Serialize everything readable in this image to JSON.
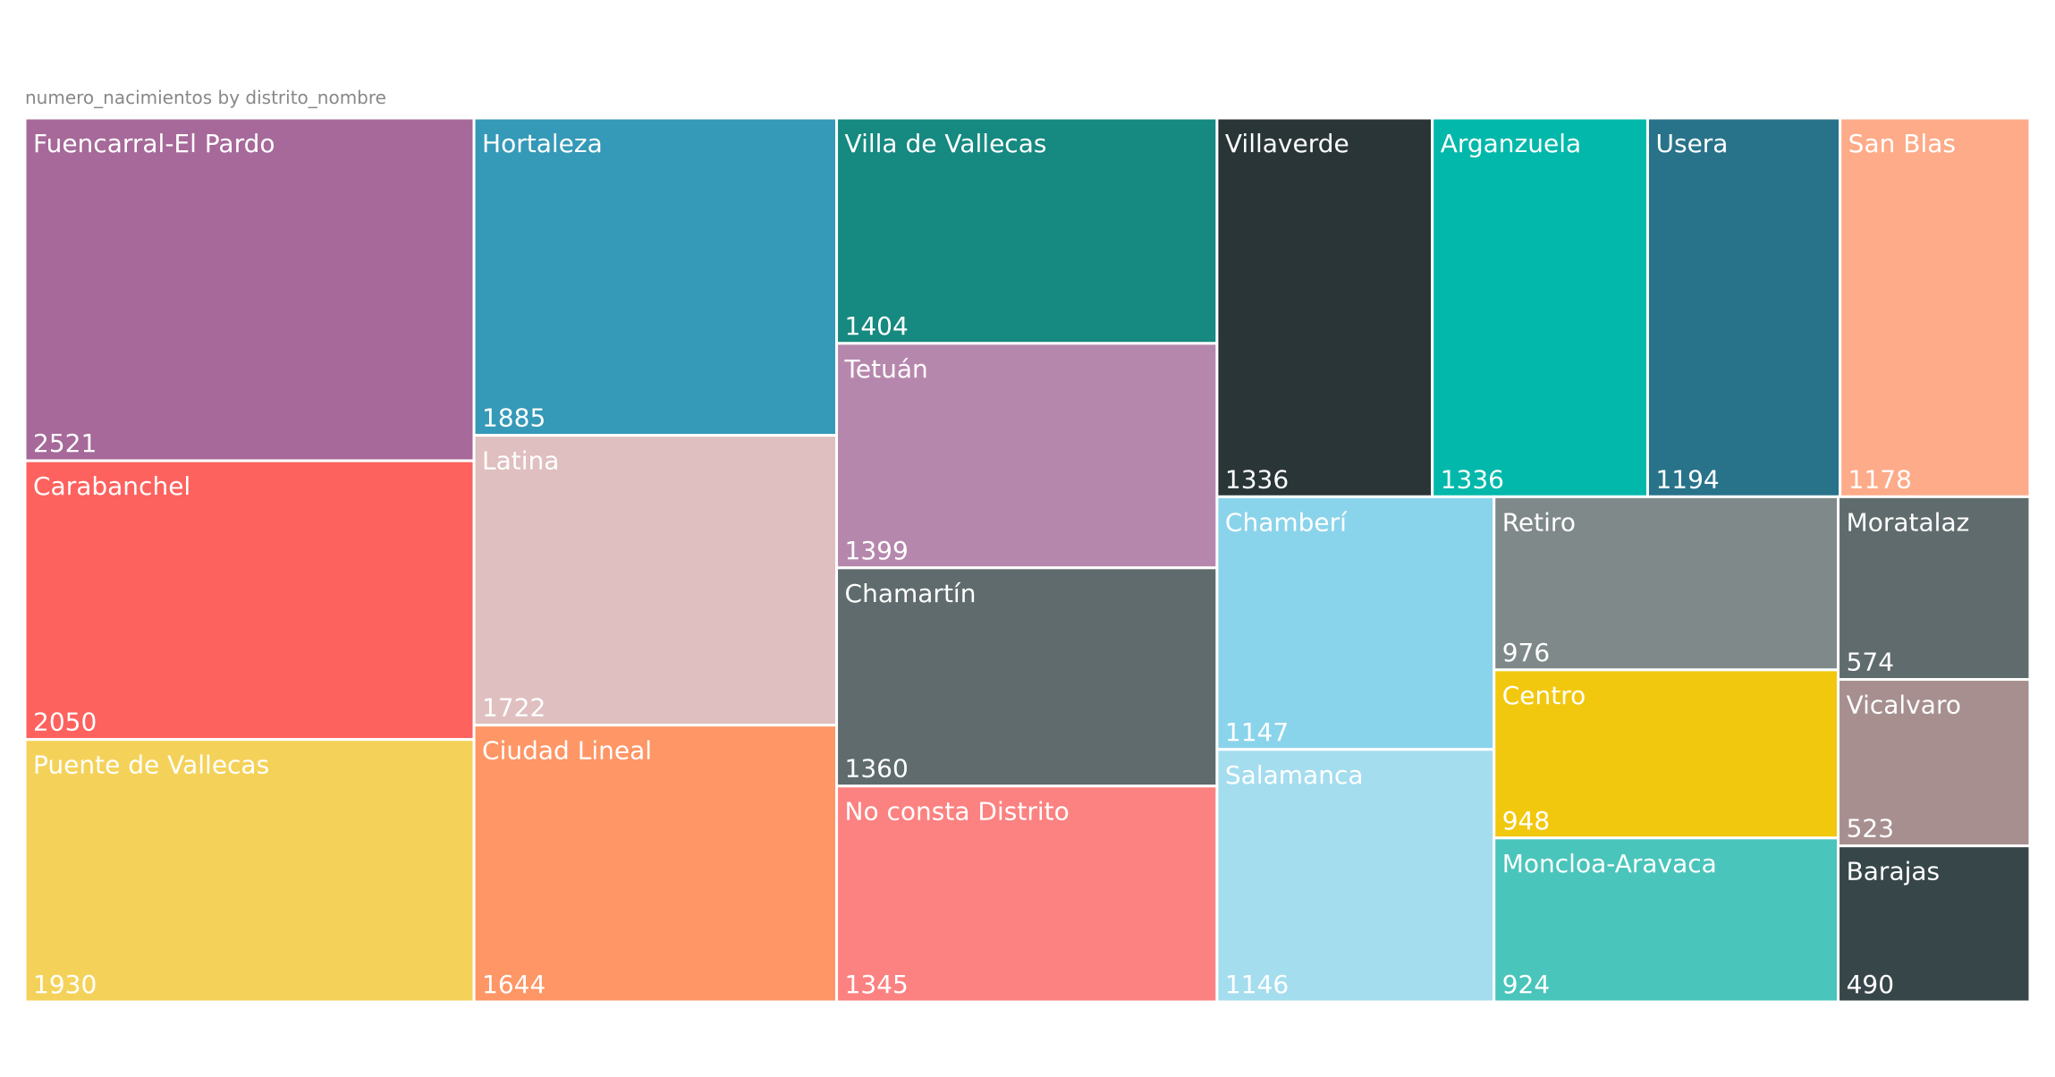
{
  "chart_data": {
    "type": "treemap",
    "title": "numero_nacimientos by distrito_nombre",
    "categories": [
      "Fuencarral-El Pardo",
      "Carabanchel",
      "Puente de Vallecas",
      "Hortaleza",
      "Latina",
      "Ciudad Lineal",
      "Villa de Vallecas",
      "Tetuán",
      "Chamartín",
      "No consta Distrito",
      "Villaverde",
      "Arganzuela",
      "Usera",
      "San Blas",
      "Chamberí",
      "Salamanca",
      "Retiro",
      "Centro",
      "Moncloa-Aravaca",
      "Moratalaz",
      "Vicalvaro",
      "Barajas"
    ],
    "values": [
      2521,
      2050,
      1930,
      1885,
      1722,
      1644,
      1404,
      1399,
      1360,
      1345,
      1336,
      1336,
      1194,
      1178,
      1147,
      1146,
      976,
      948,
      924,
      574,
      523,
      490
    ],
    "colors": [
      "#A66999",
      "#FD625E",
      "#F4D25A",
      "#3599B8",
      "#DFBFBF",
      "#FE9666",
      "#168980",
      "#B687AC",
      "#5F6B6D",
      "#FB8281",
      "#293537",
      "#01B8AA",
      "#28738A",
      "#FDAB89",
      "#8AD4EB",
      "#A4DDEE",
      "#7F898A",
      "#F2C80F",
      "#4AC5BB",
      "#5F6B6D",
      "#A78F8F",
      "#374649"
    ]
  }
}
